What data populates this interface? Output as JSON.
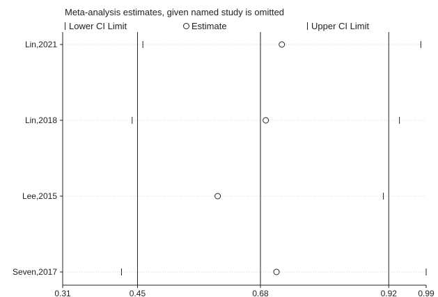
{
  "chart_data": {
    "type": "scatter",
    "title": "Meta-analysis estimates, given named study is omitted",
    "legend": [
      "Lower CI Limit",
      "Estimate",
      "Upper CI Limit"
    ],
    "legend_position": "top",
    "xlim": [
      0.31,
      0.99
    ],
    "x_ticks": [
      0.31,
      0.45,
      0.68,
      0.92,
      0.99
    ],
    "x_tick_labels": [
      "0.31",
      "0.45",
      "0.68",
      "0.92",
      "0.99"
    ],
    "reference_lines": [
      0.45,
      0.68,
      0.92
    ],
    "studies": [
      {
        "name": "Lin,2021",
        "lower": 0.46,
        "estimate": 0.72,
        "upper": 0.98
      },
      {
        "name": "Lin,2018",
        "lower": 0.44,
        "estimate": 0.69,
        "upper": 0.94
      },
      {
        "name": "Lee,2015",
        "lower": 0.31,
        "estimate": 0.6,
        "upper": 0.91
      },
      {
        "name": "Seven,2017",
        "lower": 0.42,
        "estimate": 0.71,
        "upper": 0.99
      }
    ]
  }
}
